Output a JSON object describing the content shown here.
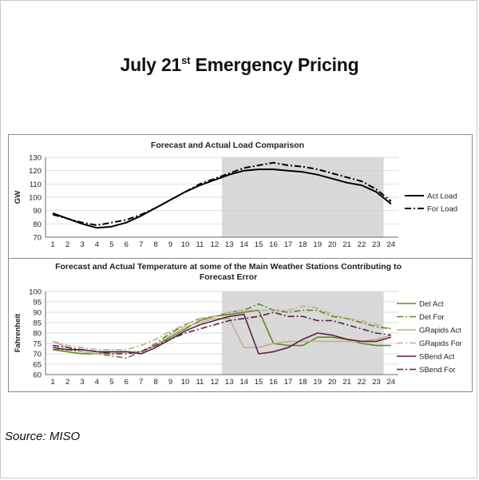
{
  "slide": {
    "title_main": "July 21",
    "title_sup": "st",
    "title_rest": " Emergency Pricing",
    "source": "Source: MISO"
  },
  "colors": {
    "shade": "#d9d9d9",
    "load_actual": "#000000",
    "load_forecast": "#000000",
    "det": "#5c8a1e",
    "grapids": "#c4ad8a",
    "sbend": "#5a1f4a"
  },
  "chart_data": [
    {
      "type": "line",
      "title": "Forecast and Actual Load Comparison",
      "xlabel": "",
      "ylabel": "GW",
      "x": [
        1,
        2,
        3,
        4,
        5,
        6,
        7,
        8,
        9,
        10,
        11,
        12,
        13,
        14,
        15,
        16,
        17,
        18,
        19,
        20,
        21,
        22,
        23,
        24
      ],
      "ylim": [
        70,
        130
      ],
      "yticks": [
        70,
        80,
        90,
        100,
        110,
        120,
        130
      ],
      "shaded_x_range": [
        12.5,
        23.5
      ],
      "legend_position": "right",
      "series": [
        {
          "name": "Act Load",
          "style": "solid",
          "values": [
            88,
            84,
            80,
            77,
            78,
            81,
            86,
            92,
            98,
            104,
            109,
            113,
            117,
            120,
            121,
            121,
            120,
            119,
            117,
            114,
            111,
            109,
            104,
            95
          ]
        },
        {
          "name": "For Load",
          "style": "dashdot",
          "values": [
            87,
            84,
            81,
            79,
            81,
            83,
            87,
            92,
            98,
            104,
            110,
            114,
            118,
            122,
            124,
            126,
            124,
            123,
            121,
            118,
            115,
            112,
            106,
            97
          ]
        }
      ]
    },
    {
      "type": "line",
      "title": "Forecast and Actual Temperature at some of the Main Weather Stations Contributing to Forecast Error",
      "title_line1": "Forecast and Actual Temperature at some of the Main Weather Stations Contributing to",
      "title_line2": "Forecast Error",
      "xlabel": "",
      "ylabel": "Fahrenheit",
      "x": [
        1,
        2,
        3,
        4,
        5,
        6,
        7,
        8,
        9,
        10,
        11,
        12,
        13,
        14,
        15,
        16,
        17,
        18,
        19,
        20,
        21,
        22,
        23,
        24
      ],
      "ylim": [
        60,
        100
      ],
      "yticks": [
        60,
        65,
        70,
        75,
        80,
        85,
        90,
        95,
        100
      ],
      "shaded_x_range": [
        12.5,
        23.5
      ],
      "legend_position": "right",
      "series": [
        {
          "name": "Det Act",
          "style": "solid",
          "color_key": "det",
          "values": [
            72,
            71,
            70,
            70,
            71,
            71,
            71,
            74,
            78,
            82,
            86,
            88,
            89,
            90,
            91,
            75,
            74,
            74,
            78,
            78,
            77,
            75,
            74,
            74
          ]
        },
        {
          "name": "Det For",
          "style": "dashdot",
          "color_key": "det",
          "values": [
            72,
            72,
            71,
            70,
            69,
            68,
            71,
            75,
            80,
            84,
            87,
            88,
            90,
            91,
            94,
            91,
            90,
            91,
            91,
            88,
            87,
            85,
            83,
            82
          ]
        },
        {
          "name": "GRapids Act",
          "style": "solid",
          "color_key": "grapids",
          "values": [
            76,
            73,
            71,
            70,
            70,
            71,
            71,
            74,
            79,
            83,
            85,
            87,
            87,
            73,
            73,
            75,
            76,
            76,
            76,
            76,
            76,
            76,
            77,
            79
          ]
        },
        {
          "name": "GRapids For",
          "style": "dashdot",
          "color_key": "grapids",
          "values": [
            76,
            74,
            73,
            72,
            72,
            72,
            74,
            77,
            81,
            84,
            87,
            88,
            90,
            91,
            91,
            91,
            91,
            93,
            92,
            89,
            87,
            86,
            84,
            82
          ]
        },
        {
          "name": "SBend Act",
          "style": "solid",
          "color_key": "sbend",
          "values": [
            73,
            72,
            72,
            71,
            71,
            71,
            70,
            73,
            77,
            81,
            84,
            86,
            88,
            89,
            70,
            71,
            73,
            77,
            80,
            79,
            77,
            76,
            76,
            78
          ]
        },
        {
          "name": "SBend For",
          "style": "dashdot",
          "color_key": "sbend",
          "values": [
            74,
            73,
            72,
            71,
            70,
            70,
            71,
            74,
            77,
            80,
            82,
            84,
            86,
            87,
            88,
            90,
            88,
            88,
            86,
            86,
            84,
            82,
            80,
            79
          ]
        }
      ]
    }
  ]
}
